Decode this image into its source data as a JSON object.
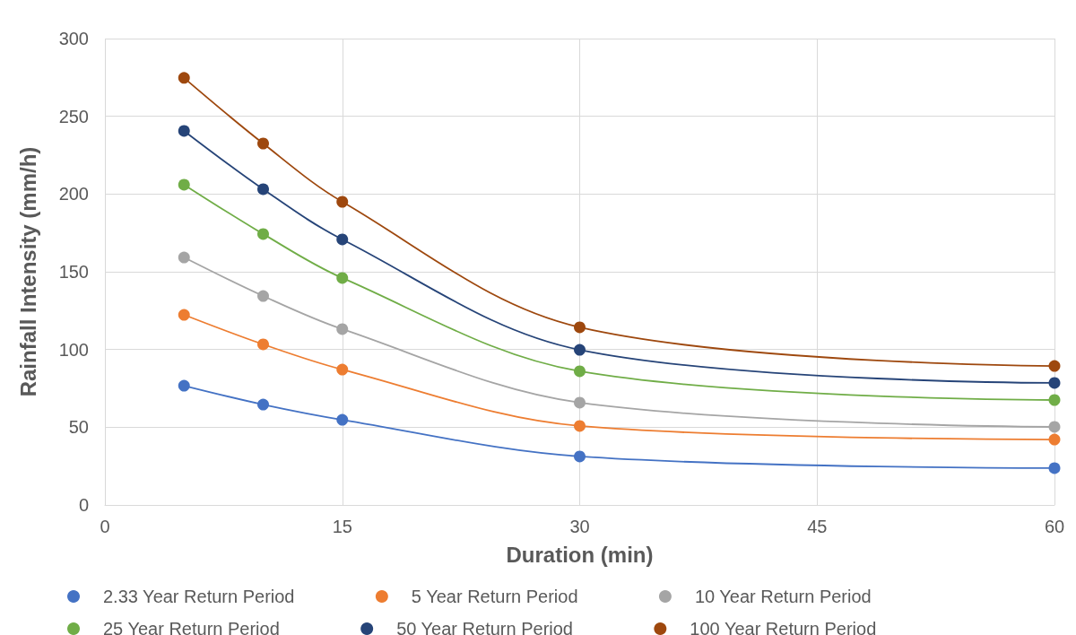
{
  "chart_data": {
    "type": "line",
    "xlabel": "Duration (min)",
    "ylabel": "Rainfall Intensity (mm/h)",
    "x": [
      5,
      10,
      15,
      30,
      60
    ],
    "xlim": [
      0,
      60
    ],
    "xticks": [
      0,
      15,
      30,
      45,
      60
    ],
    "ylim": [
      0,
      300
    ],
    "yticks": [
      0,
      50,
      100,
      150,
      200,
      250,
      300
    ],
    "grid": true,
    "legend": "bottom",
    "marker": "circle",
    "line_style": "solid",
    "series": [
      {
        "name": "2.33 Year Return Period",
        "color": "#4472c4",
        "values": [
          76.7,
          64.6,
          54.8,
          31.2,
          23.7
        ]
      },
      {
        "name": "5 Year Return Period",
        "color": "#ed7d31",
        "values": [
          122.3,
          103.3,
          87.1,
          50.8,
          42.1
        ]
      },
      {
        "name": "10 Year Return Period",
        "color": "#a5a5a5",
        "values": [
          159.2,
          134.4,
          113.1,
          65.8,
          50.2
        ]
      },
      {
        "name": "25 Year Return Period",
        "color": "#70ad47",
        "values": [
          206,
          174.3,
          146,
          86,
          67.5
        ]
      },
      {
        "name": "50 Year Return Period",
        "color": "#264478",
        "values": [
          240.6,
          203.1,
          170.8,
          99.8,
          78.5
        ]
      },
      {
        "name": "100 Year Return Period",
        "color": "#9e480e",
        "values": [
          274.7,
          232.5,
          195,
          114.3,
          89.4
        ]
      }
    ]
  }
}
